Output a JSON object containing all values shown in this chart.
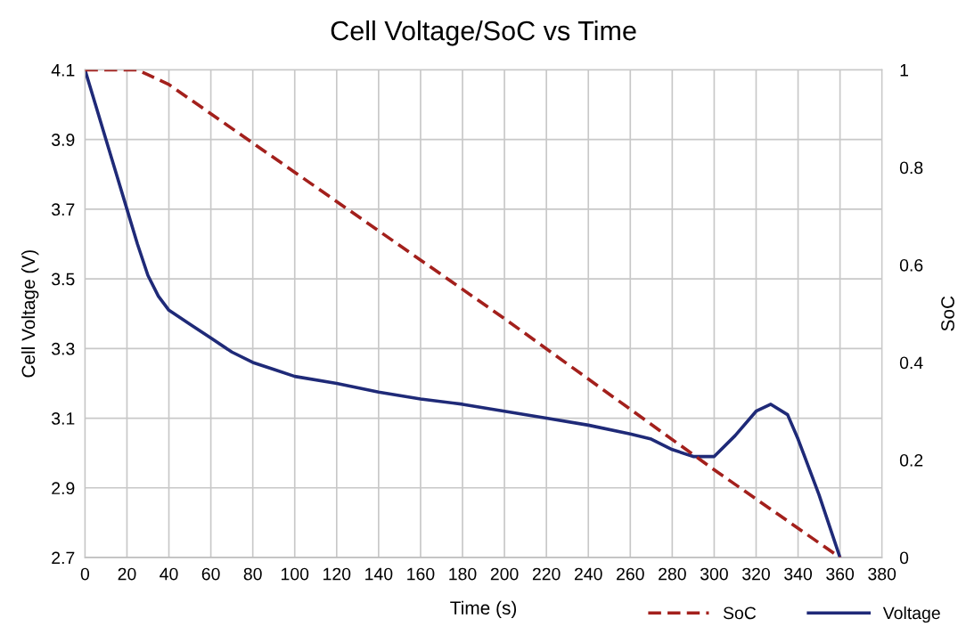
{
  "chart_data": {
    "type": "line",
    "title": "Cell Voltage/SoC vs Time",
    "xlabel": "Time (s)",
    "ylabel": "Cell Voltage (V)",
    "y2label": "SoC",
    "xlim": [
      0,
      380
    ],
    "xticks": [
      0,
      20,
      40,
      60,
      80,
      100,
      120,
      140,
      160,
      180,
      200,
      220,
      240,
      260,
      280,
      300,
      320,
      340,
      360,
      380
    ],
    "ylim": [
      2.7,
      4.1
    ],
    "yticks": [
      2.7,
      2.9,
      3.1,
      3.3,
      3.5,
      3.7,
      3.9,
      4.1
    ],
    "y2lim": [
      0,
      1
    ],
    "y2ticks": [
      0,
      0.2,
      0.4,
      0.6,
      0.8,
      1
    ],
    "grid": true,
    "legend": "bottom right",
    "marker": "none",
    "series": [
      {
        "name": "SoC",
        "color": "#a3201c",
        "axis": "y2",
        "line_style": "dashed",
        "x": [
          0,
          25,
          30,
          40,
          60,
          80,
          100,
          200,
          300,
          360
        ],
        "values": [
          1,
          1,
          0.99,
          0.97,
          0.91,
          0.85,
          0.79,
          0.49,
          0.18,
          0
        ]
      },
      {
        "name": "Voltage",
        "color": "#1f2a78",
        "line_style": "solid",
        "x": [
          0,
          5,
          10,
          15,
          20,
          25,
          30,
          35,
          40,
          50,
          60,
          70,
          80,
          90,
          100,
          120,
          140,
          160,
          180,
          200,
          220,
          240,
          260,
          270,
          280,
          290,
          300,
          310,
          320,
          327,
          335,
          340,
          350,
          360
        ],
        "values": [
          4.1,
          4.0,
          3.9,
          3.8,
          3.7,
          3.6,
          3.51,
          3.45,
          3.41,
          3.37,
          3.33,
          3.29,
          3.26,
          3.24,
          3.22,
          3.2,
          3.175,
          3.155,
          3.14,
          3.12,
          3.1,
          3.08,
          3.055,
          3.04,
          3.01,
          2.99,
          2.99,
          3.05,
          3.12,
          3.14,
          3.11,
          3.04,
          2.88,
          2.7
        ]
      }
    ]
  }
}
